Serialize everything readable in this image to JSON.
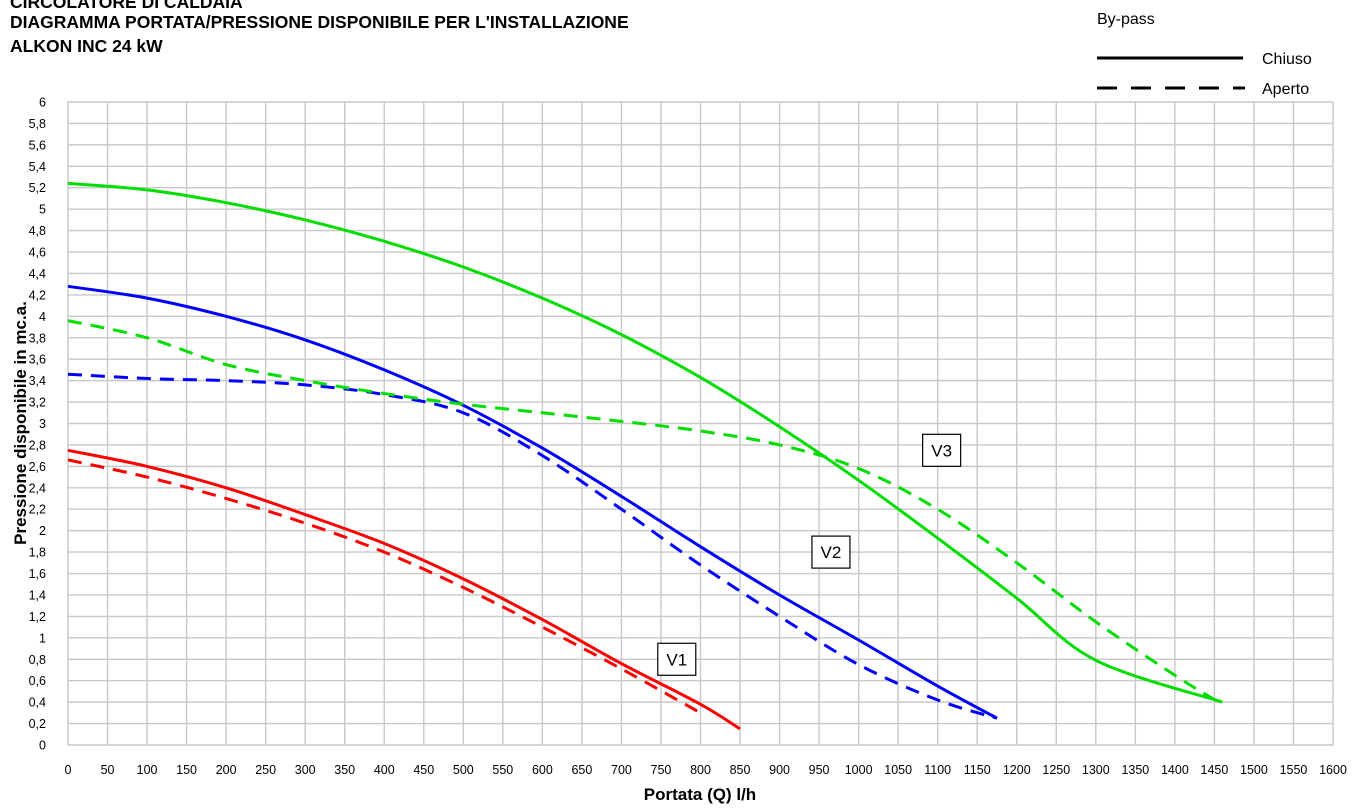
{
  "header": {
    "line1": "CIRCOLATORE DI CALDAIA",
    "line2": "DIAGRAMMA PORTATA/PRESSIONE DISPONIBILE PER L'INSTALLAZIONE",
    "line3": "ALKON INC 24 kW"
  },
  "legend": {
    "title": "By-pass",
    "items": [
      {
        "label": "Chiuso",
        "style": "solid"
      },
      {
        "label": "Aperto",
        "style": "dashed"
      }
    ]
  },
  "chart_data": {
    "type": "line",
    "xlabel": "Portata (Q) l/h",
    "ylabel": "Pressione disponibile in mc.a.",
    "xlim": [
      0,
      1600
    ],
    "ylim": [
      0,
      6
    ],
    "x_ticks": [
      0,
      50,
      100,
      150,
      200,
      250,
      300,
      350,
      400,
      450,
      500,
      550,
      600,
      650,
      700,
      750,
      800,
      850,
      900,
      950,
      1000,
      1050,
      1100,
      1150,
      1200,
      1250,
      1300,
      1350,
      1400,
      1450,
      1500,
      1550,
      1600
    ],
    "y_ticks": [
      "0",
      "0,2",
      "0,4",
      "0,6",
      "0,8",
      "1",
      "1,2",
      "1,4",
      "1,6",
      "1,8",
      "2",
      "2,2",
      "2,4",
      "2,6",
      "2,8",
      "3",
      "3,2",
      "3,4",
      "3,6",
      "3,8",
      "4",
      "4,2",
      "4,4",
      "4,6",
      "4,8",
      "5",
      "5,2",
      "5,4",
      "5,6",
      "5,8",
      "6"
    ],
    "grid": true,
    "legend_position": "top-right",
    "series": [
      {
        "label": "V1",
        "bypass": "Chiuso",
        "color": "#ff0000",
        "dash": false,
        "points": [
          [
            0,
            2.75
          ],
          [
            100,
            2.6
          ],
          [
            200,
            2.4
          ],
          [
            300,
            2.15
          ],
          [
            400,
            1.88
          ],
          [
            500,
            1.55
          ],
          [
            600,
            1.17
          ],
          [
            700,
            0.76
          ],
          [
            800,
            0.38
          ],
          [
            850,
            0.15
          ]
        ]
      },
      {
        "label": "V1",
        "bypass": "Aperto",
        "color": "#ff0000",
        "dash": true,
        "points": [
          [
            0,
            2.66
          ],
          [
            100,
            2.5
          ],
          [
            200,
            2.3
          ],
          [
            300,
            2.07
          ],
          [
            400,
            1.8
          ],
          [
            500,
            1.47
          ],
          [
            600,
            1.1
          ],
          [
            700,
            0.71
          ],
          [
            800,
            0.3
          ]
        ]
      },
      {
        "label": "V2",
        "bypass": "Chiuso",
        "color": "#0000ff",
        "dash": false,
        "points": [
          [
            0,
            4.28
          ],
          [
            100,
            4.17
          ],
          [
            200,
            4.0
          ],
          [
            300,
            3.78
          ],
          [
            400,
            3.5
          ],
          [
            500,
            3.17
          ],
          [
            600,
            2.77
          ],
          [
            700,
            2.32
          ],
          [
            800,
            1.85
          ],
          [
            900,
            1.4
          ],
          [
            1000,
            0.98
          ],
          [
            1100,
            0.55
          ],
          [
            1175,
            0.25
          ]
        ]
      },
      {
        "label": "V2",
        "bypass": "Aperto",
        "color": "#0000ff",
        "dash": true,
        "points": [
          [
            0,
            3.46
          ],
          [
            100,
            3.42
          ],
          [
            200,
            3.4
          ],
          [
            300,
            3.36
          ],
          [
            400,
            3.27
          ],
          [
            500,
            3.1
          ],
          [
            600,
            2.7
          ],
          [
            700,
            2.2
          ],
          [
            800,
            1.68
          ],
          [
            900,
            1.2
          ],
          [
            1000,
            0.75
          ],
          [
            1100,
            0.42
          ],
          [
            1175,
            0.25
          ]
        ]
      },
      {
        "label": "V3",
        "bypass": "Chiuso",
        "color": "#00dd00",
        "dash": false,
        "points": [
          [
            0,
            5.24
          ],
          [
            100,
            5.18
          ],
          [
            200,
            5.06
          ],
          [
            300,
            4.9
          ],
          [
            400,
            4.7
          ],
          [
            500,
            4.46
          ],
          [
            600,
            4.17
          ],
          [
            700,
            3.83
          ],
          [
            800,
            3.43
          ],
          [
            900,
            2.97
          ],
          [
            1000,
            2.47
          ],
          [
            1100,
            1.93
          ],
          [
            1200,
            1.37
          ],
          [
            1300,
            0.79
          ],
          [
            1460,
            0.4
          ]
        ]
      },
      {
        "label": "V3",
        "bypass": "Aperto",
        "color": "#00dd00",
        "dash": true,
        "points": [
          [
            0,
            3.96
          ],
          [
            100,
            3.8
          ],
          [
            200,
            3.55
          ],
          [
            300,
            3.4
          ],
          [
            400,
            3.28
          ],
          [
            500,
            3.18
          ],
          [
            600,
            3.1
          ],
          [
            700,
            3.02
          ],
          [
            800,
            2.93
          ],
          [
            900,
            2.8
          ],
          [
            1000,
            2.58
          ],
          [
            1100,
            2.2
          ],
          [
            1200,
            1.7
          ],
          [
            1300,
            1.15
          ],
          [
            1400,
            0.65
          ],
          [
            1460,
            0.38
          ]
        ]
      }
    ],
    "curve_labels": [
      {
        "text": "V1",
        "x": 770,
        "y": 0.8
      },
      {
        "text": "V2",
        "x": 965,
        "y": 1.8
      },
      {
        "text": "V3",
        "x": 1105,
        "y": 2.75
      }
    ]
  }
}
